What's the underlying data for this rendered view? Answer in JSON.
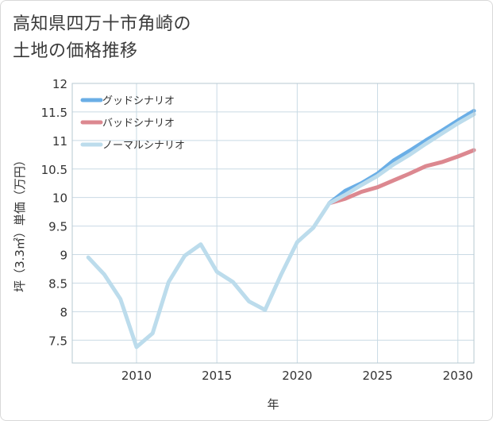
{
  "title_line1": "高知県四万十市角崎の",
  "title_line2": "土地の価格推移",
  "chart_data": {
    "type": "line",
    "xlabel": "年",
    "ylabel": "坪（3.3㎡）単価（万円）",
    "xlim": [
      2006,
      2031
    ],
    "ylim": [
      7.1,
      12
    ],
    "x_ticks": [
      2010,
      2015,
      2020,
      2025,
      2030
    ],
    "x_tick_labels": [
      "2010",
      "2015",
      "2020",
      "2025",
      "2030"
    ],
    "y_ticks": [
      7.5,
      8,
      8.5,
      9,
      9.5,
      10,
      10.5,
      11,
      11.5,
      12
    ],
    "y_tick_labels": [
      "7.5",
      "8",
      "8.5",
      "9",
      "9.5",
      "10",
      "10.5",
      "11",
      "11.5",
      "12"
    ],
    "legend_position": "top-left",
    "series": [
      {
        "name": "グッドシナリオ",
        "color": "#6aaee6",
        "x": [
          2022,
          2023,
          2024,
          2025,
          2026,
          2027,
          2028,
          2029,
          2030,
          2031
        ],
        "values": [
          9.9,
          10.12,
          10.25,
          10.42,
          10.65,
          10.82,
          11.0,
          11.17,
          11.35,
          11.52
        ]
      },
      {
        "name": "バッドシナリオ",
        "color": "#dc8890",
        "x": [
          2022,
          2023,
          2024,
          2025,
          2026,
          2027,
          2028,
          2029,
          2030,
          2031
        ],
        "values": [
          9.9,
          9.98,
          10.1,
          10.18,
          10.3,
          10.42,
          10.55,
          10.62,
          10.72,
          10.83
        ]
      },
      {
        "name": "ノーマルシナリオ",
        "color": "#bcdcec",
        "x": [
          2007,
          2008,
          2009,
          2010,
          2011,
          2012,
          2013,
          2014,
          2015,
          2016,
          2017,
          2018,
          2019,
          2020,
          2021,
          2022,
          2023,
          2024,
          2025,
          2026,
          2027,
          2028,
          2029,
          2030,
          2031
        ],
        "values": [
          8.95,
          8.65,
          8.22,
          7.38,
          7.62,
          8.52,
          8.98,
          9.18,
          8.7,
          8.52,
          8.18,
          8.03,
          8.65,
          9.22,
          9.47,
          9.9,
          10.05,
          10.22,
          10.38,
          10.58,
          10.75,
          10.94,
          11.12,
          11.3,
          11.46
        ]
      }
    ]
  }
}
